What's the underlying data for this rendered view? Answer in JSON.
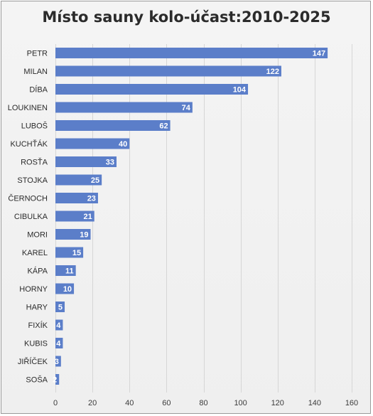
{
  "chart_data": {
    "type": "bar",
    "orientation": "horizontal",
    "title": "Místo sauny kolo-účast:2010-2025",
    "categories": [
      "PETR",
      "MILAN",
      "DÍBA",
      "LOUKINEN",
      "LUBOŠ",
      "KUCHŤÁK",
      "ROSŤA",
      "STOJKA",
      "ČERNOCH",
      "CIBULKA",
      "MORI",
      "KAREL",
      "KÁPA",
      "HORNY",
      "HARY",
      "FIXÍK",
      "KUBIS",
      "JIŘÍČEK",
      "SOŠA"
    ],
    "values": [
      147,
      122,
      104,
      74,
      62,
      40,
      33,
      25,
      23,
      21,
      19,
      15,
      11,
      10,
      5,
      4,
      4,
      3,
      2
    ],
    "xlim": [
      0,
      160
    ],
    "xticks": [
      0,
      20,
      40,
      60,
      80,
      100,
      120,
      140,
      160
    ],
    "grid": true,
    "bar_color": "#5b7ec9",
    "data_label_color": "#ffffff"
  }
}
